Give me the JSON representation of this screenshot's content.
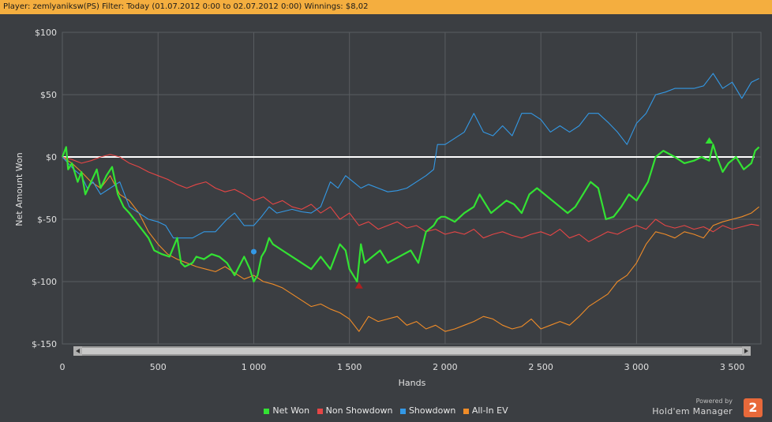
{
  "header": {
    "title": "Player: zemlyaniksw(PS) Filter: Today (01.07.2012 0:00 to 02.07.2012 0:00) Winnings: $8,02"
  },
  "colors": {
    "background": "#3b3e42",
    "grid": "#5a5d61",
    "zero_line": "#ffffff",
    "net_won": "#33e233",
    "non_showdown": "#e64646",
    "showdown": "#3399e6",
    "all_in_ev": "#f08c28"
  },
  "chart_data": {
    "type": "line",
    "xlabel": "Hands",
    "ylabel": "Net Amount Won",
    "xlim": [
      0,
      3650
    ],
    "ylim": [
      -150,
      100
    ],
    "x_ticks": [
      0,
      500,
      1000,
      1500,
      2000,
      2500,
      3000,
      3500
    ],
    "x_tick_labels": [
      "0",
      "500",
      "1 000",
      "1 500",
      "2 000",
      "2 500",
      "3 000",
      "3 500"
    ],
    "y_ticks": [
      100,
      50,
      0,
      -50,
      -100,
      -150
    ],
    "y_tick_labels": [
      "$100",
      "$50",
      "$0",
      "$-50",
      "$-100",
      "$-150"
    ],
    "grid": true,
    "legend_position": "bottom",
    "series": [
      {
        "name": "Net Won",
        "x": [
          0,
          20,
          30,
          50,
          80,
          100,
          120,
          150,
          180,
          200,
          230,
          260,
          290,
          320,
          350,
          400,
          450,
          480,
          520,
          560,
          600,
          620,
          640,
          680,
          700,
          740,
          780,
          820,
          860,
          900,
          950,
          980,
          1000,
          1020,
          1040,
          1060,
          1080,
          1100,
          1150,
          1200,
          1250,
          1300,
          1350,
          1400,
          1450,
          1480,
          1500,
          1540,
          1560,
          1580,
          1620,
          1660,
          1700,
          1760,
          1820,
          1860,
          1900,
          1940,
          1960,
          1980,
          2000,
          2050,
          2100,
          2150,
          2180,
          2200,
          2240,
          2280,
          2320,
          2360,
          2400,
          2440,
          2480,
          2520,
          2560,
          2600,
          2640,
          2680,
          2720,
          2760,
          2800,
          2840,
          2880,
          2920,
          2960,
          3000,
          3040,
          3060,
          3080,
          3100,
          3140,
          3200,
          3250,
          3300,
          3340,
          3380,
          3400,
          3420,
          3450,
          3480,
          3520,
          3560,
          3600,
          3620,
          3640
        ],
        "y": [
          0,
          8,
          -10,
          -5,
          -20,
          -12,
          -30,
          -20,
          -10,
          -25,
          -15,
          -8,
          -30,
          -40,
          -45,
          -55,
          -65,
          -75,
          -78,
          -80,
          -65,
          -85,
          -88,
          -85,
          -80,
          -82,
          -78,
          -80,
          -85,
          -95,
          -80,
          -90,
          -100,
          -95,
          -80,
          -75,
          -65,
          -70,
          -75,
          -80,
          -85,
          -90,
          -80,
          -90,
          -70,
          -75,
          -90,
          -100,
          -70,
          -85,
          -80,
          -75,
          -85,
          -80,
          -75,
          -85,
          -60,
          -55,
          -50,
          -48,
          -48,
          -52,
          -45,
          -40,
          -30,
          -35,
          -45,
          -40,
          -35,
          -38,
          -45,
          -30,
          -25,
          -30,
          -35,
          -40,
          -45,
          -40,
          -30,
          -20,
          -25,
          -50,
          -48,
          -40,
          -30,
          -35,
          -25,
          -20,
          -10,
          0,
          5,
          0,
          -5,
          -3,
          0,
          -3,
          10,
          0,
          -12,
          -5,
          0,
          -10,
          -5,
          5,
          8
        ]
      },
      {
        "name": "Non Showdown",
        "x": [
          0,
          50,
          100,
          150,
          200,
          250,
          300,
          350,
          400,
          450,
          500,
          550,
          600,
          650,
          700,
          750,
          800,
          850,
          900,
          950,
          1000,
          1050,
          1100,
          1150,
          1200,
          1250,
          1300,
          1350,
          1400,
          1450,
          1500,
          1550,
          1600,
          1650,
          1700,
          1750,
          1800,
          1850,
          1900,
          1950,
          2000,
          2050,
          2100,
          2150,
          2200,
          2250,
          2300,
          2350,
          2400,
          2450,
          2500,
          2550,
          2600,
          2650,
          2700,
          2750,
          2800,
          2850,
          2900,
          2950,
          3000,
          3050,
          3100,
          3150,
          3200,
          3250,
          3300,
          3350,
          3400,
          3450,
          3500,
          3550,
          3600,
          3640
        ],
        "y": [
          0,
          -2,
          -5,
          -3,
          0,
          2,
          0,
          -5,
          -8,
          -12,
          -15,
          -18,
          -22,
          -25,
          -22,
          -20,
          -25,
          -28,
          -26,
          -30,
          -35,
          -32,
          -38,
          -35,
          -40,
          -42,
          -38,
          -45,
          -40,
          -50,
          -45,
          -55,
          -52,
          -58,
          -55,
          -52,
          -57,
          -55,
          -60,
          -58,
          -62,
          -60,
          -62,
          -58,
          -65,
          -62,
          -60,
          -63,
          -65,
          -62,
          -60,
          -63,
          -58,
          -65,
          -62,
          -68,
          -64,
          -60,
          -62,
          -58,
          -55,
          -58,
          -50,
          -55,
          -57,
          -55,
          -58,
          -56,
          -60,
          -55,
          -58,
          -56,
          -54,
          -55
        ]
      },
      {
        "name": "Showdown",
        "x": [
          0,
          30,
          60,
          100,
          130,
          160,
          200,
          250,
          300,
          350,
          400,
          450,
          500,
          540,
          580,
          620,
          680,
          740,
          800,
          860,
          900,
          950,
          1000,
          1040,
          1080,
          1120,
          1200,
          1250,
          1300,
          1350,
          1400,
          1440,
          1480,
          1520,
          1560,
          1600,
          1650,
          1700,
          1750,
          1800,
          1850,
          1900,
          1940,
          1960,
          2000,
          2050,
          2100,
          2150,
          2200,
          2250,
          2300,
          2350,
          2400,
          2450,
          2500,
          2550,
          2600,
          2650,
          2700,
          2750,
          2800,
          2850,
          2900,
          2950,
          3000,
          3050,
          3100,
          3150,
          3200,
          3250,
          3300,
          3350,
          3400,
          3450,
          3500,
          3550,
          3600,
          3640
        ],
        "y": [
          0,
          -5,
          -10,
          -15,
          -25,
          -20,
          -30,
          -25,
          -20,
          -40,
          -45,
          -50,
          -52,
          -55,
          -65,
          -65,
          -65,
          -60,
          -60,
          -50,
          -45,
          -55,
          -55,
          -48,
          -40,
          -45,
          -42,
          -44,
          -45,
          -40,
          -20,
          -25,
          -15,
          -20,
          -25,
          -22,
          -25,
          -28,
          -27,
          -25,
          -20,
          -15,
          -10,
          10,
          10,
          15,
          20,
          35,
          20,
          17,
          25,
          17,
          35,
          35,
          30,
          20,
          25,
          20,
          25,
          35,
          35,
          28,
          20,
          10,
          27,
          35,
          50,
          52,
          55,
          55,
          55,
          57,
          67,
          55,
          60,
          47,
          60,
          63
        ]
      },
      {
        "name": "All-In EV",
        "x": [
          0,
          50,
          100,
          150,
          200,
          250,
          300,
          350,
          400,
          450,
          500,
          550,
          600,
          650,
          700,
          750,
          800,
          850,
          900,
          950,
          1000,
          1050,
          1100,
          1150,
          1200,
          1250,
          1300,
          1350,
          1400,
          1450,
          1500,
          1550,
          1600,
          1650,
          1700,
          1750,
          1800,
          1850,
          1900,
          1950,
          2000,
          2050,
          2100,
          2150,
          2200,
          2250,
          2300,
          2350,
          2400,
          2450,
          2500,
          2550,
          2600,
          2650,
          2700,
          2750,
          2800,
          2850,
          2900,
          2950,
          3000,
          3050,
          3100,
          3150,
          3200,
          3250,
          3300,
          3350,
          3400,
          3450,
          3500,
          3550,
          3600,
          3640
        ],
        "y": [
          0,
          -5,
          -12,
          -20,
          -25,
          -15,
          -30,
          -35,
          -45,
          -60,
          -70,
          -78,
          -82,
          -85,
          -88,
          -90,
          -92,
          -88,
          -93,
          -98,
          -95,
          -100,
          -102,
          -105,
          -110,
          -115,
          -120,
          -118,
          -122,
          -125,
          -130,
          -140,
          -128,
          -132,
          -130,
          -128,
          -135,
          -132,
          -138,
          -135,
          -140,
          -138,
          -135,
          -132,
          -128,
          -130,
          -135,
          -138,
          -136,
          -130,
          -138,
          -135,
          -132,
          -135,
          -128,
          -120,
          -115,
          -110,
          -100,
          -95,
          -85,
          -70,
          -60,
          -62,
          -65,
          -60,
          -62,
          -65,
          -55,
          -52,
          -50,
          -48,
          -45,
          -40
        ]
      }
    ],
    "markers": [
      {
        "series": "Net Won",
        "x": 3380,
        "y": 12,
        "shape": "arrow-up"
      },
      {
        "series": "Showdown",
        "x": 1000,
        "y": -76,
        "shape": "circle"
      },
      {
        "series": "Non Showdown",
        "x": 1550,
        "y": -103,
        "shape": "triangle"
      }
    ]
  },
  "brand": {
    "powered_by": "Powered by",
    "name": "Hold'em Manager",
    "badge": "2"
  }
}
